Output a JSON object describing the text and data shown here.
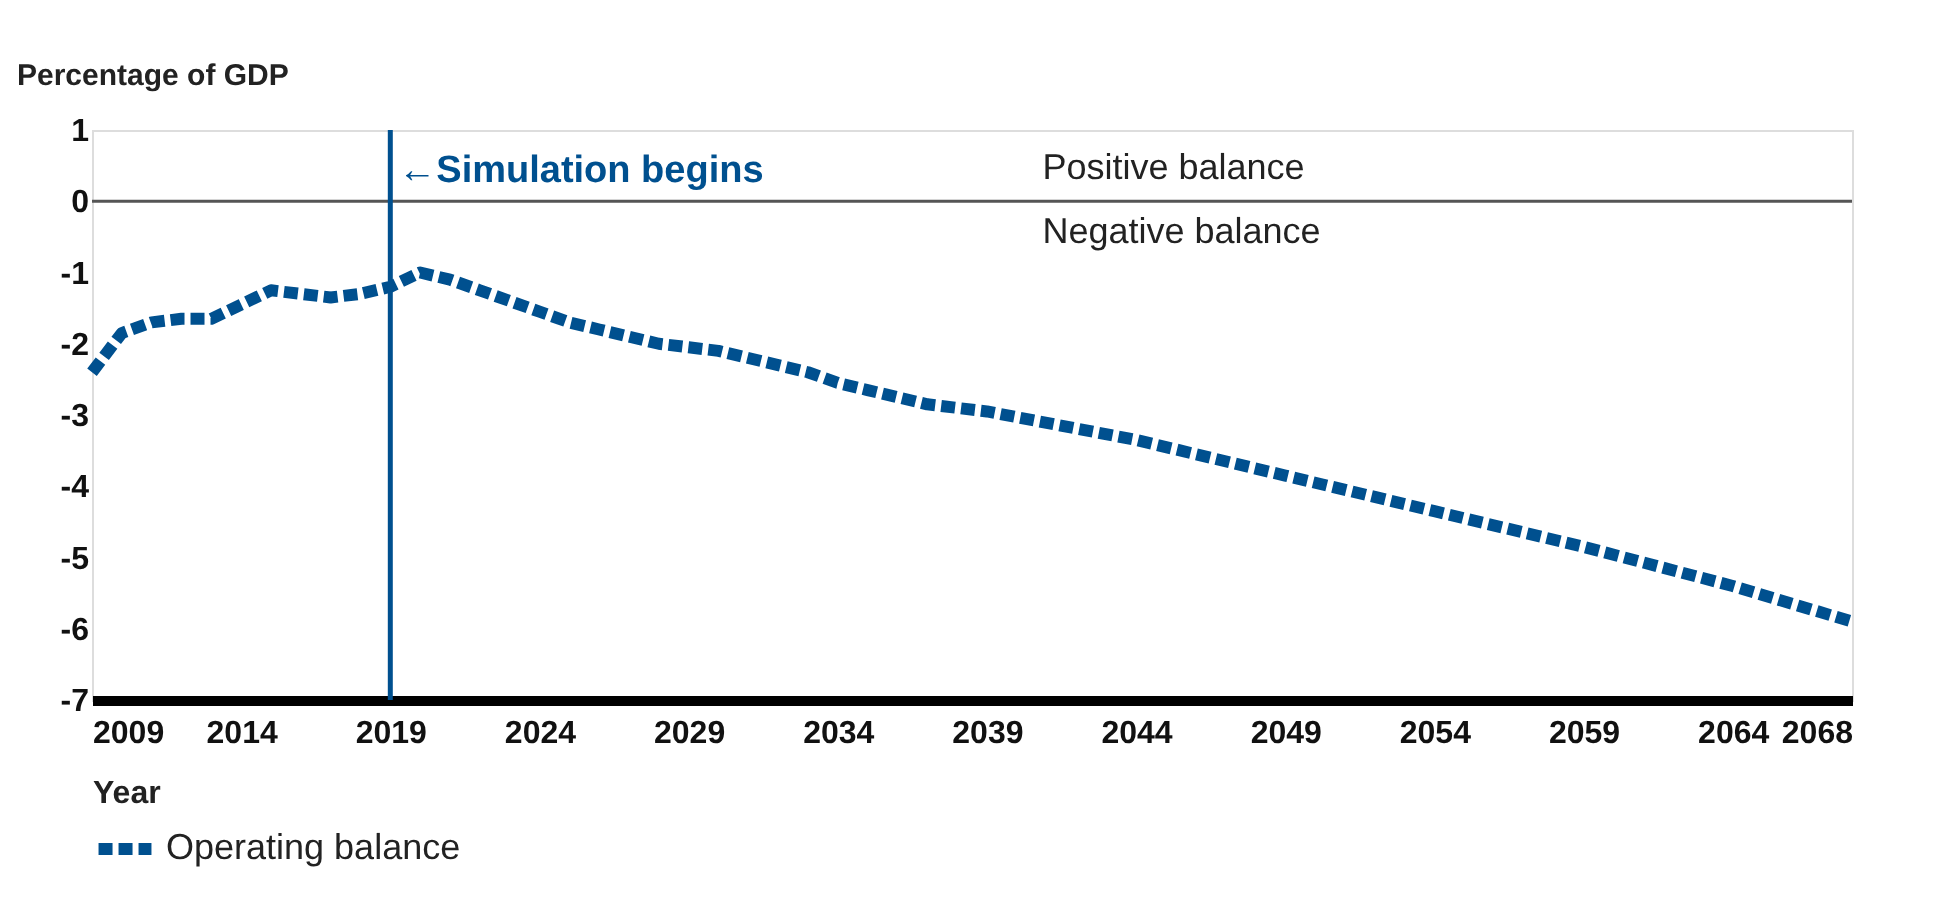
{
  "chart_data": {
    "type": "line",
    "ylabel": "Percentage of GDP",
    "xlabel": "Year",
    "x": [
      2009,
      2010,
      2011,
      2012,
      2013,
      2014,
      2015,
      2016,
      2017,
      2018,
      2019,
      2020,
      2021,
      2022,
      2023,
      2024,
      2025,
      2026,
      2027,
      2028,
      2029,
      2030,
      2031,
      2032,
      2033,
      2034,
      2035,
      2036,
      2037,
      2039,
      2044,
      2049,
      2054,
      2059,
      2064,
      2068
    ],
    "series": [
      {
        "name": "Operating balance",
        "color": "#00508f",
        "values": [
          -2.4,
          -1.85,
          -1.7,
          -1.65,
          -1.65,
          -1.45,
          -1.25,
          -1.3,
          -1.35,
          -1.3,
          -1.2,
          -1.0,
          -1.1,
          -1.25,
          -1.4,
          -1.55,
          -1.7,
          -1.8,
          -1.9,
          -2.0,
          -2.05,
          -2.1,
          -2.2,
          -2.3,
          -2.4,
          -2.55,
          -2.65,
          -2.75,
          -2.85,
          -2.95,
          -3.35,
          -3.85,
          -4.35,
          -4.85,
          -5.4,
          -5.9
        ]
      }
    ],
    "line_style": "dashed",
    "marker": "none",
    "xlim": [
      2009,
      2068
    ],
    "xticks": [
      2009,
      2014,
      2019,
      2024,
      2029,
      2034,
      2039,
      2044,
      2049,
      2054,
      2059,
      2064,
      2068
    ],
    "ylim": [
      -7,
      1
    ],
    "yticks": [
      1,
      0,
      -1,
      -2,
      -3,
      -4,
      -5,
      -6,
      -7
    ],
    "grid": false,
    "legend": "bottom",
    "ref_lines": [
      {
        "axis": "y",
        "value": 0,
        "color": "#555555"
      },
      {
        "axis": "x",
        "value": 2019,
        "label": "←Simulation begins",
        "color": "#00508f"
      }
    ],
    "annotations": [
      "Positive balance",
      "Negative balance"
    ]
  }
}
